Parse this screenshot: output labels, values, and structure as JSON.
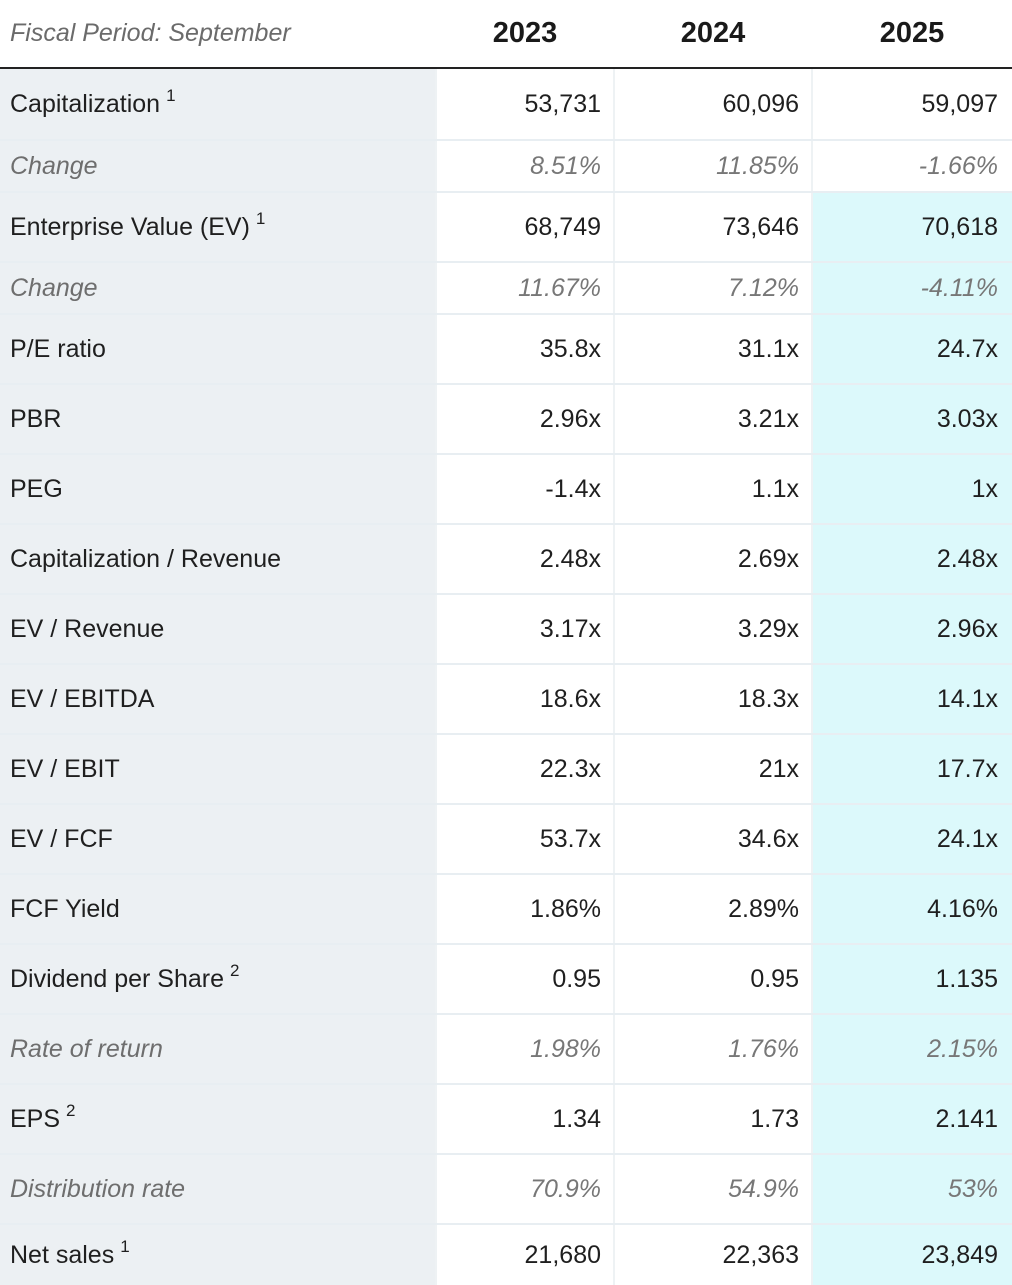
{
  "header": {
    "period_label": "Fiscal Period: September",
    "years": [
      "2023",
      "2024",
      "2025"
    ]
  },
  "rows": [
    {
      "label": "Capitalization",
      "note": "1",
      "values": [
        "53,731",
        "60,096",
        "59,097"
      ]
    },
    {
      "label": "Change",
      "note": "",
      "values": [
        "8.51%",
        "11.85%",
        "-1.66%"
      ]
    },
    {
      "label": "Enterprise Value (EV)",
      "note": "1",
      "values": [
        "68,749",
        "73,646",
        "70,618"
      ]
    },
    {
      "label": "Change",
      "note": "",
      "values": [
        "11.67%",
        "7.12%",
        "-4.11%"
      ]
    },
    {
      "label": "P/E ratio",
      "note": "",
      "values": [
        "35.8x",
        "31.1x",
        "24.7x"
      ]
    },
    {
      "label": "PBR",
      "note": "",
      "values": [
        "2.96x",
        "3.21x",
        "3.03x"
      ]
    },
    {
      "label": "PEG",
      "note": "",
      "values": [
        "-1.4x",
        "1.1x",
        "1x"
      ]
    },
    {
      "label": "Capitalization / Revenue",
      "note": "",
      "values": [
        "2.48x",
        "2.69x",
        "2.48x"
      ]
    },
    {
      "label": "EV / Revenue",
      "note": "",
      "values": [
        "3.17x",
        "3.29x",
        "2.96x"
      ]
    },
    {
      "label": "EV / EBITDA",
      "note": "",
      "values": [
        "18.6x",
        "18.3x",
        "14.1x"
      ]
    },
    {
      "label": "EV / EBIT",
      "note": "",
      "values": [
        "22.3x",
        "21x",
        "17.7x"
      ]
    },
    {
      "label": "EV / FCF",
      "note": "",
      "values": [
        "53.7x",
        "34.6x",
        "24.1x"
      ]
    },
    {
      "label": "FCF Yield",
      "note": "",
      "values": [
        "1.86%",
        "2.89%",
        "4.16%"
      ]
    },
    {
      "label": "Dividend per Share",
      "note": "2",
      "values": [
        "0.95",
        "0.95",
        "1.135"
      ]
    },
    {
      "label": "Rate of return",
      "note": "",
      "values": [
        "1.98%",
        "1.76%",
        "2.15%"
      ]
    },
    {
      "label": "EPS",
      "note": "2",
      "values": [
        "1.34",
        "1.73",
        "2.141"
      ]
    },
    {
      "label": "Distribution rate",
      "note": "",
      "values": [
        "70.9%",
        "54.9%",
        "53%"
      ]
    },
    {
      "label": "Net sales",
      "note": "1",
      "values": [
        "21,680",
        "22,363",
        "23,849"
      ]
    }
  ],
  "colors": {
    "label_column_bg": "#ecf0f3",
    "estimate_highlight_bg": "#dcf9fb",
    "header_rule": "#222222"
  }
}
